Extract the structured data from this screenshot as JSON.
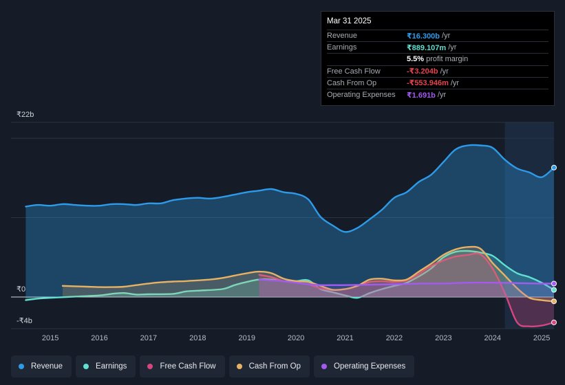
{
  "tooltip": {
    "date": "Mar 31 2025",
    "rows": [
      {
        "label": "Revenue",
        "value": "₹16.300b",
        "unit": "/yr",
        "color": "#2e9be8"
      },
      {
        "label": "Earnings",
        "value": "₹889.107m",
        "unit": "/yr",
        "color": "#5fe0d0"
      },
      {
        "label": "",
        "value": "5.5%",
        "unit": "profit margin",
        "color": "#ffffff"
      },
      {
        "label": "Free Cash Flow",
        "value": "-₹3.204b",
        "unit": "/yr",
        "color": "#e8434e"
      },
      {
        "label": "Cash From Op",
        "value": "-₹553.946m",
        "unit": "/yr",
        "color": "#e8434e"
      },
      {
        "label": "Operating Expenses",
        "value": "₹1.691b",
        "unit": "/yr",
        "color": "#a25bf0"
      }
    ]
  },
  "legend": [
    {
      "label": "Revenue",
      "color": "#2e9be8"
    },
    {
      "label": "Earnings",
      "color": "#5fe0d0"
    },
    {
      "label": "Free Cash Flow",
      "color": "#d6457e"
    },
    {
      "label": "Cash From Op",
      "color": "#e8b264"
    },
    {
      "label": "Operating Expenses",
      "color": "#a25bf0"
    }
  ],
  "chart_data": {
    "type": "area",
    "title": "",
    "xlabel": "",
    "ylabel": "",
    "ylim": [
      -4,
      22
    ],
    "xlim": [
      2014.2,
      2025.25
    ],
    "y_tick_labels": [
      {
        "v": 22,
        "label": "₹22b"
      },
      {
        "v": 0,
        "label": "₹0"
      },
      {
        "v": -4,
        "label": "-₹4b"
      }
    ],
    "x_ticks": [
      2015,
      2016,
      2017,
      2018,
      2019,
      2020,
      2021,
      2022,
      2023,
      2024,
      2025
    ],
    "highlight_range": [
      2024.25,
      2025.25
    ],
    "series": [
      {
        "name": "Revenue",
        "color": "#2e9be8",
        "fill": true,
        "points": [
          [
            2014.5,
            11.4
          ],
          [
            2014.75,
            11.6
          ],
          [
            2015.0,
            11.5
          ],
          [
            2015.25,
            11.7
          ],
          [
            2015.5,
            11.6
          ],
          [
            2015.75,
            11.5
          ],
          [
            2016.0,
            11.5
          ],
          [
            2016.25,
            11.7
          ],
          [
            2016.5,
            11.7
          ],
          [
            2016.75,
            11.6
          ],
          [
            2017.0,
            11.8
          ],
          [
            2017.25,
            11.8
          ],
          [
            2017.5,
            12.2
          ],
          [
            2017.75,
            12.4
          ],
          [
            2018.0,
            12.5
          ],
          [
            2018.25,
            12.4
          ],
          [
            2018.5,
            12.6
          ],
          [
            2018.75,
            12.9
          ],
          [
            2019.0,
            13.2
          ],
          [
            2019.25,
            13.4
          ],
          [
            2019.5,
            13.6
          ],
          [
            2019.75,
            13.2
          ],
          [
            2020.0,
            13.0
          ],
          [
            2020.25,
            12.3
          ],
          [
            2020.5,
            10.1
          ],
          [
            2020.75,
            9.0
          ],
          [
            2021.0,
            8.2
          ],
          [
            2021.25,
            8.7
          ],
          [
            2021.5,
            9.8
          ],
          [
            2021.75,
            11.0
          ],
          [
            2022.0,
            12.5
          ],
          [
            2022.25,
            13.2
          ],
          [
            2022.5,
            14.5
          ],
          [
            2022.75,
            15.4
          ],
          [
            2023.0,
            17.0
          ],
          [
            2023.25,
            18.6
          ],
          [
            2023.5,
            19.1
          ],
          [
            2023.75,
            19.1
          ],
          [
            2024.0,
            18.8
          ],
          [
            2024.25,
            17.3
          ],
          [
            2024.5,
            16.2
          ],
          [
            2024.75,
            15.7
          ],
          [
            2025.0,
            15.1
          ],
          [
            2025.25,
            16.3
          ]
        ]
      },
      {
        "name": "Earnings",
        "color": "#5fe0d0",
        "fill": true,
        "points": [
          [
            2014.5,
            -0.4
          ],
          [
            2014.75,
            -0.2
          ],
          [
            2015.0,
            -0.1
          ],
          [
            2015.5,
            0.05
          ],
          [
            2016.0,
            0.2
          ],
          [
            2016.25,
            0.4
          ],
          [
            2016.5,
            0.5
          ],
          [
            2016.75,
            0.3
          ],
          [
            2017.0,
            0.35
          ],
          [
            2017.5,
            0.4
          ],
          [
            2017.75,
            0.7
          ],
          [
            2018.0,
            0.8
          ],
          [
            2018.5,
            1.0
          ],
          [
            2018.75,
            1.5
          ],
          [
            2019.0,
            1.9
          ],
          [
            2019.25,
            2.2
          ],
          [
            2019.5,
            2.2
          ],
          [
            2019.75,
            2.0
          ],
          [
            2020.0,
            2.0
          ],
          [
            2020.25,
            2.1
          ],
          [
            2020.5,
            1.0
          ],
          [
            2020.75,
            0.6
          ],
          [
            2021.0,
            0.2
          ],
          [
            2021.25,
            -0.1
          ],
          [
            2021.5,
            0.5
          ],
          [
            2021.75,
            1.0
          ],
          [
            2022.0,
            1.4
          ],
          [
            2022.25,
            1.8
          ],
          [
            2022.5,
            2.6
          ],
          [
            2022.75,
            3.6
          ],
          [
            2023.0,
            5.0
          ],
          [
            2023.25,
            5.7
          ],
          [
            2023.5,
            5.8
          ],
          [
            2023.75,
            5.6
          ],
          [
            2024.0,
            5.2
          ],
          [
            2024.25,
            4.0
          ],
          [
            2024.5,
            3.0
          ],
          [
            2024.75,
            2.5
          ],
          [
            2025.0,
            1.8
          ],
          [
            2025.25,
            0.9
          ]
        ]
      },
      {
        "name": "Free Cash Flow",
        "color": "#d6457e",
        "fill": true,
        "points": [
          [
            2019.25,
            2.8
          ],
          [
            2019.5,
            2.5
          ],
          [
            2019.75,
            2.0
          ],
          [
            2020.0,
            1.8
          ],
          [
            2020.25,
            1.6
          ],
          [
            2020.5,
            1.1
          ],
          [
            2020.75,
            0.9
          ],
          [
            2021.0,
            1.0
          ],
          [
            2021.25,
            1.4
          ],
          [
            2021.5,
            1.9
          ],
          [
            2021.75,
            2.0
          ],
          [
            2022.0,
            1.9
          ],
          [
            2022.25,
            2.1
          ],
          [
            2022.5,
            2.9
          ],
          [
            2022.75,
            3.9
          ],
          [
            2023.0,
            4.6
          ],
          [
            2023.25,
            5.1
          ],
          [
            2023.5,
            5.3
          ],
          [
            2023.75,
            5.4
          ],
          [
            2024.0,
            3.6
          ],
          [
            2024.25,
            0.5
          ],
          [
            2024.5,
            -3.2
          ],
          [
            2024.75,
            -3.7
          ],
          [
            2025.0,
            -3.6
          ],
          [
            2025.25,
            -3.2
          ]
        ]
      },
      {
        "name": "Cash From Op",
        "color": "#e8b264",
        "fill": true,
        "points": [
          [
            2015.25,
            1.4
          ],
          [
            2015.5,
            1.35
          ],
          [
            2015.75,
            1.3
          ],
          [
            2016.0,
            1.25
          ],
          [
            2016.25,
            1.25
          ],
          [
            2016.5,
            1.3
          ],
          [
            2016.75,
            1.5
          ],
          [
            2017.0,
            1.7
          ],
          [
            2017.25,
            1.85
          ],
          [
            2017.5,
            1.95
          ],
          [
            2017.75,
            2.0
          ],
          [
            2018.0,
            2.1
          ],
          [
            2018.25,
            2.2
          ],
          [
            2018.5,
            2.4
          ],
          [
            2018.75,
            2.7
          ],
          [
            2019.0,
            3.0
          ],
          [
            2019.25,
            3.2
          ],
          [
            2019.5,
            3.0
          ],
          [
            2019.75,
            2.3
          ],
          [
            2020.0,
            2.0
          ],
          [
            2020.25,
            1.9
          ],
          [
            2020.5,
            1.4
          ],
          [
            2020.75,
            0.9
          ],
          [
            2021.0,
            1.0
          ],
          [
            2021.25,
            1.4
          ],
          [
            2021.5,
            2.2
          ],
          [
            2021.75,
            2.3
          ],
          [
            2022.0,
            2.1
          ],
          [
            2022.25,
            2.2
          ],
          [
            2022.5,
            3.2
          ],
          [
            2022.75,
            4.2
          ],
          [
            2023.0,
            5.3
          ],
          [
            2023.25,
            6.0
          ],
          [
            2023.5,
            6.3
          ],
          [
            2023.75,
            6.1
          ],
          [
            2024.0,
            4.3
          ],
          [
            2024.25,
            2.7
          ],
          [
            2024.5,
            1.1
          ],
          [
            2024.75,
            -0.1
          ],
          [
            2025.0,
            -0.4
          ],
          [
            2025.25,
            -0.55
          ]
        ]
      },
      {
        "name": "Operating Expenses",
        "color": "#a25bf0",
        "fill": true,
        "points": [
          [
            2019.25,
            2.2
          ],
          [
            2019.5,
            2.1
          ],
          [
            2019.75,
            2.0
          ],
          [
            2020.0,
            1.8
          ],
          [
            2020.25,
            1.6
          ],
          [
            2020.5,
            1.5
          ],
          [
            2020.75,
            1.5
          ],
          [
            2021.0,
            1.5
          ],
          [
            2021.5,
            1.55
          ],
          [
            2022.0,
            1.6
          ],
          [
            2022.5,
            1.7
          ],
          [
            2023.0,
            1.7
          ],
          [
            2023.5,
            1.8
          ],
          [
            2024.0,
            1.8
          ],
          [
            2024.5,
            1.75
          ],
          [
            2025.0,
            1.7
          ],
          [
            2025.25,
            1.69
          ]
        ]
      }
    ]
  }
}
